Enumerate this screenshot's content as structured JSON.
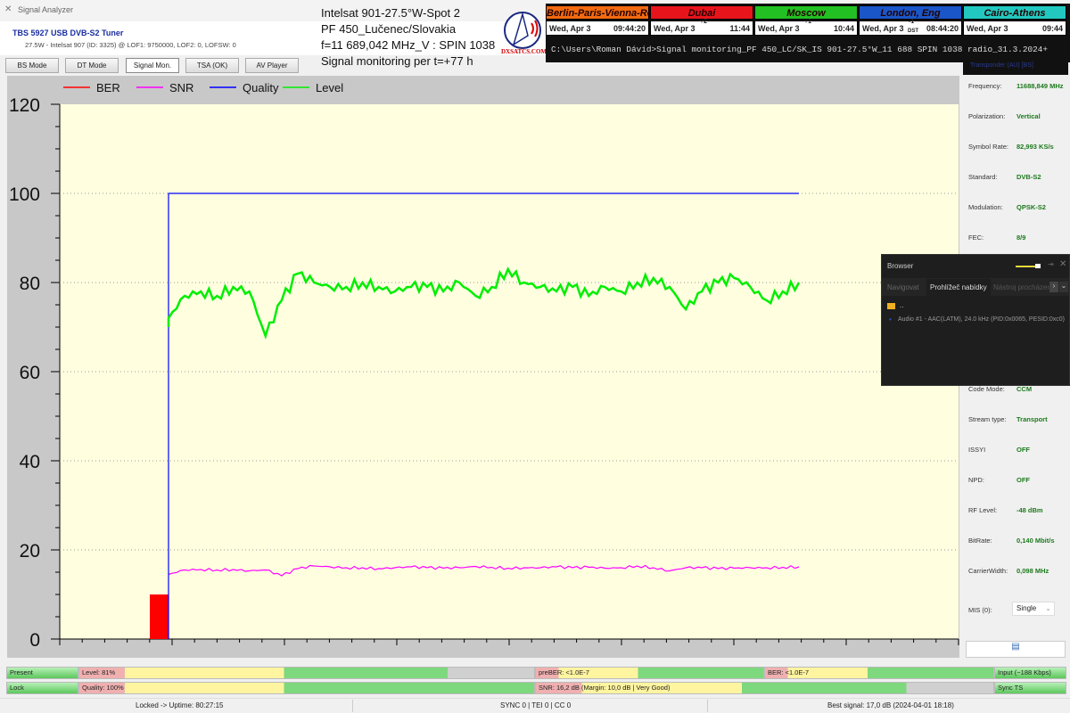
{
  "window": {
    "title": "Signal Analyzer"
  },
  "header": {
    "tuner": "TBS 5927 USB DVB-S2 Tuner",
    "details": "27.5W - Intelsat 907 (ID: 3325) @ LOF1: 9750000, LOF2: 0, LOFSW: 0"
  },
  "tabs": [
    {
      "label": "BS Mode"
    },
    {
      "label": "DT Mode"
    },
    {
      "label": "Signal Mon.",
      "active": true
    },
    {
      "label": "TSA (OK)"
    },
    {
      "label": "AV Player"
    }
  ],
  "overlay": {
    "lines": [
      "Intelsat 901-27.5°W-Spot 2",
      "PF 450_Lučenec/Slovakia",
      "f=11 689,042 MHz_V : SPIN 1038",
      "Signal monitoring per t=+77 h"
    ],
    "logo": "DXSATCS.COM"
  },
  "clocks": [
    {
      "city": "Berlin-Paris-Vienna-Roma",
      "date": "Wed, Apr 3",
      "time": "09:44:20",
      "offset": "",
      "color": "#f26a10"
    },
    {
      "city": "Dubai",
      "date": "Wed, Apr 3",
      "time": "11:44",
      "offset": "+2",
      "color": "#e8141c"
    },
    {
      "city": "Moscow",
      "date": "Wed, Apr 3",
      "time": "10:44",
      "offset": "+1",
      "color": "#22c022"
    },
    {
      "city": "London, Eng",
      "date": "Wed, Apr 3",
      "time": "08:44:20",
      "offset": "-1",
      "note": "DST",
      "color": "#1a56c8"
    },
    {
      "city": "Cairo-Athens",
      "date": "Wed, Apr 3",
      "time": "09:44",
      "offset": "",
      "color": "#22c8c0"
    }
  ],
  "console": {
    "text": "C:\\Users\\Roman Dávid>Signal monitoring_PF 450_LC/SK_IS 901-27.5°W_11 688 SPIN 1038 radio_31.3.2024+"
  },
  "chart_data": {
    "type": "line",
    "title": "",
    "xlabel": "",
    "ylabel": "",
    "ylim": [
      0,
      120
    ],
    "yticks": [
      "0",
      "20",
      "40",
      "60",
      "80",
      "100",
      "120"
    ],
    "grid": true,
    "legend_position": "top-left",
    "series": [
      {
        "name": "BER",
        "color": "#ff0000",
        "kind": "bar",
        "values": [
          10
        ]
      },
      {
        "name": "SNR",
        "color": "#ff00ff",
        "values": [
          14.5,
          15.5,
          15.6,
          15.5,
          15.6,
          15.3,
          15.5,
          14.2,
          15.8,
          16.4,
          16.2,
          16,
          16,
          15.8,
          16,
          16.2,
          16,
          15.9,
          16,
          16.3,
          16.1,
          15.9,
          16,
          16,
          16.2,
          16,
          16.1,
          15.9,
          16,
          16.4,
          16,
          15.3,
          16,
          16,
          15.8,
          15.9,
          16,
          16,
          16.1,
          16.2
        ]
      },
      {
        "name": "Quality",
        "color": "#0000ff",
        "values": [
          100,
          100,
          100,
          100,
          100,
          100,
          100,
          100,
          100,
          100,
          100,
          100,
          100,
          100,
          100,
          100,
          100,
          100,
          100,
          100,
          100,
          100,
          100,
          100,
          100,
          100,
          100,
          100,
          100,
          100,
          100,
          100,
          100,
          100,
          100,
          100,
          100,
          100,
          100,
          100
        ]
      },
      {
        "name": "Level",
        "color": "#00ee00",
        "values": [
          72,
          77,
          78,
          77,
          79,
          78,
          68,
          76,
          82,
          80,
          79,
          79,
          80,
          79,
          78,
          79,
          79,
          78,
          80,
          77,
          79,
          83,
          80,
          79,
          78,
          79,
          77,
          79,
          78,
          80,
          81,
          79,
          74,
          78,
          80,
          81,
          79,
          76,
          78,
          80
        ]
      }
    ]
  },
  "transponder": {
    "heading": "Transponder (AU) [BS]",
    "props": [
      {
        "label": "Frequency:",
        "value": "11688,849 MHz"
      },
      {
        "label": "Polarization:",
        "value": "Vertical"
      },
      {
        "label": "Symbol Rate:",
        "value": "82,993 KS/s"
      },
      {
        "label": "Standard:",
        "value": "DVB-S2"
      },
      {
        "label": "Modulation:",
        "value": "QPSK-S2"
      },
      {
        "label": "FEC:",
        "value": "8/9"
      },
      {
        "label": "Code Mode:",
        "value": "CCM"
      },
      {
        "label": "Stream type:",
        "value": "Transport"
      },
      {
        "label": "ISSYI",
        "value": "OFF"
      },
      {
        "label": "NPD:",
        "value": "OFF"
      },
      {
        "label": "RF Level:",
        "value": "-48 dBm"
      },
      {
        "label": "BitRate:",
        "value": "0,140 Mbit/s"
      },
      {
        "label": "CarrierWidth:",
        "value": "0,098 MHz"
      }
    ],
    "mis_label": "MIS (0):",
    "mis_value": "Single"
  },
  "browser": {
    "title": "Browser",
    "tabs": [
      "Navigovat",
      "Prohlížeč nabídky",
      "Nástroj procházení"
    ],
    "folder": "..",
    "item": "Audio #1 - AAC(LATM), 24.0 kHz (PID:0x0065, PESID:0xc0)"
  },
  "bars": {
    "present": "Present",
    "lock": "Lock",
    "level": {
      "label": "Level: 81%",
      "value": 81
    },
    "quality": {
      "label": "Quality: 100%",
      "value": 100
    },
    "preber": {
      "label": "preBER: <1.0E-7",
      "value": 100
    },
    "ber": {
      "label": "BER: <1.0E-7",
      "value": 100
    },
    "snr": {
      "label": "SNR: 16,2 dB (Margin: 10,0 dB | Very Good)",
      "value": 81
    },
    "input": "Input (~188 Kbps)",
    "sync": "Sync TS"
  },
  "statusbar": {
    "uptime": "Locked -> Uptime: 80:27:15",
    "sync": "SYNC 0 | TEI 0 | CC 0",
    "best": "Best signal: 17,0 dB (2024-04-01 18:18)"
  }
}
